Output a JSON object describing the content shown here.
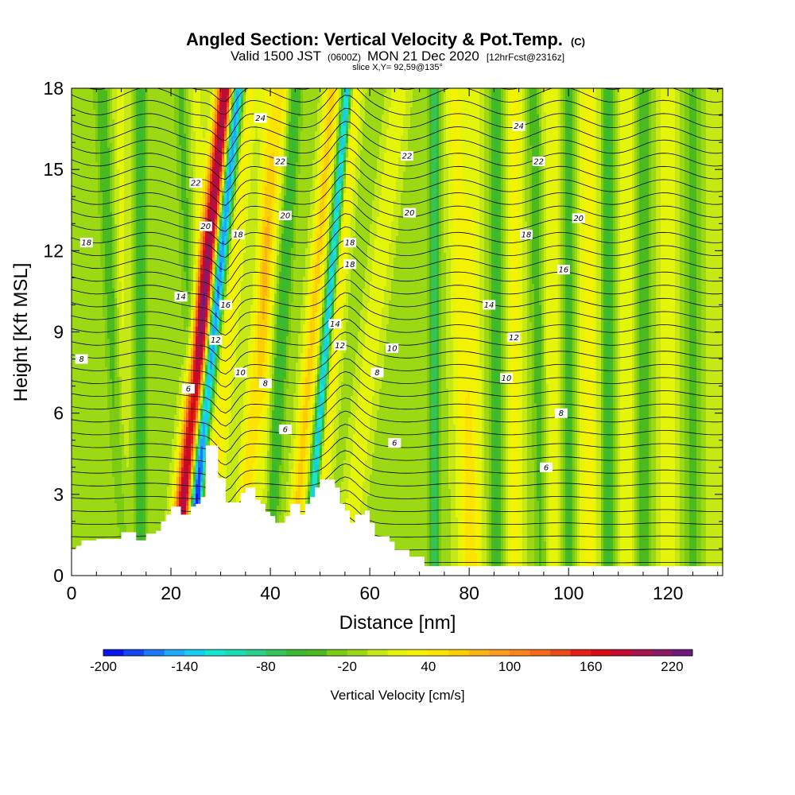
{
  "header": {
    "title_main": "Angled Section: Vertical Velocity & Pot.Temp.",
    "title_unit": "(C)",
    "valid_part1": "Valid 1500 JST",
    "valid_utc": "(0600Z)",
    "valid_part2": "MON 21 Dec 2020",
    "valid_fcst": "[12hrFcst@2316z]",
    "slice": "slice X,Y= 92,59@135°"
  },
  "chart_data": {
    "type": "heatmap",
    "xlabel": "Distance [nm]",
    "ylabel": "Height [Kft MSL]",
    "xlim": [
      0,
      131
    ],
    "ylim": [
      0,
      18
    ],
    "x_ticks": [
      0,
      20,
      40,
      60,
      80,
      100,
      120
    ],
    "y_ticks": [
      0,
      3,
      6,
      9,
      12,
      15,
      18
    ],
    "field": "vertical velocity (color fill)",
    "contour_field": "potential temperature (black contours)",
    "colorbar": {
      "title": "Vertical Velocity [cm/s]",
      "ticks": [
        -200,
        -140,
        -80,
        -20,
        40,
        100,
        160,
        220
      ],
      "levels": [
        -200,
        -185,
        -170,
        -155,
        -140,
        -125,
        -110,
        -95,
        -80,
        -65,
        -50,
        -35,
        -20,
        -5,
        10,
        25,
        40,
        55,
        70,
        85,
        100,
        115,
        130,
        145,
        160,
        175,
        190,
        205,
        220,
        235
      ],
      "colors": [
        "#0a16ee",
        "#1446f5",
        "#1e78fa",
        "#1ea9fa",
        "#14cdf0",
        "#14e6d2",
        "#18dcb2",
        "#2ad08c",
        "#34c45a",
        "#3aba2e",
        "#4aba1e",
        "#7ccc14",
        "#9cd814",
        "#c6e814",
        "#e4f50a",
        "#f4f200",
        "#fce400",
        "#fcd000",
        "#fcb414",
        "#fc9c1c",
        "#fc841c",
        "#f46a1a",
        "#ec4a1a",
        "#e41e14",
        "#d80a14",
        "#c40a32",
        "#a8124e",
        "#8c1868",
        "#6c1a7e"
      ]
    },
    "terrain_profile": [
      [
        0,
        1.0
      ],
      [
        1,
        1.0
      ],
      [
        1,
        1.1
      ],
      [
        2,
        1.1
      ],
      [
        2,
        1.3
      ],
      [
        5,
        1.3
      ],
      [
        5,
        1.35
      ],
      [
        10,
        1.35
      ],
      [
        10,
        1.6
      ],
      [
        13,
        1.6
      ],
      [
        13,
        1.3
      ],
      [
        15,
        1.3
      ],
      [
        15,
        1.55
      ],
      [
        17,
        1.55
      ],
      [
        17,
        1.65
      ],
      [
        18,
        1.65
      ],
      [
        18,
        2.0
      ],
      [
        19,
        2.0
      ],
      [
        19,
        2.25
      ],
      [
        20,
        2.25
      ],
      [
        20,
        2.55
      ],
      [
        22,
        2.55
      ],
      [
        22,
        2.25
      ],
      [
        24,
        2.25
      ],
      [
        24,
        2.55
      ],
      [
        25,
        2.55
      ],
      [
        25,
        2.65
      ],
      [
        26,
        2.65
      ],
      [
        26,
        2.9
      ],
      [
        27,
        2.9
      ],
      [
        27,
        4.8
      ],
      [
        29.5,
        4.8
      ],
      [
        29.5,
        3.6
      ],
      [
        31,
        3.6
      ],
      [
        31,
        2.7
      ],
      [
        34,
        2.7
      ],
      [
        34,
        3.05
      ],
      [
        35,
        3.05
      ],
      [
        35,
        3.25
      ],
      [
        37,
        3.25
      ],
      [
        37,
        2.8
      ],
      [
        38,
        2.8
      ],
      [
        38,
        2.65
      ],
      [
        39,
        2.65
      ],
      [
        39,
        2.35
      ],
      [
        40,
        2.35
      ],
      [
        40,
        2.2
      ],
      [
        41,
        2.2
      ],
      [
        41,
        1.95
      ],
      [
        43,
        1.95
      ],
      [
        43,
        2.2
      ],
      [
        44,
        2.2
      ],
      [
        44,
        2.65
      ],
      [
        46,
        2.65
      ],
      [
        46,
        2.25
      ],
      [
        47,
        2.25
      ],
      [
        47,
        2.65
      ],
      [
        48,
        2.65
      ],
      [
        48,
        2.9
      ],
      [
        49,
        2.9
      ],
      [
        49,
        3.25
      ],
      [
        50,
        3.25
      ],
      [
        50,
        3.55
      ],
      [
        53,
        3.55
      ],
      [
        53,
        3.25
      ],
      [
        54,
        3.25
      ],
      [
        54,
        2.65
      ],
      [
        55,
        2.65
      ],
      [
        55,
        2.4
      ],
      [
        56,
        2.4
      ],
      [
        56,
        1.95
      ],
      [
        57,
        1.95
      ],
      [
        57,
        2.25
      ],
      [
        59,
        2.25
      ],
      [
        59,
        2.4
      ],
      [
        60,
        2.4
      ],
      [
        60,
        1.95
      ],
      [
        61,
        1.95
      ],
      [
        61,
        1.45
      ],
      [
        64,
        1.45
      ],
      [
        64,
        1.25
      ],
      [
        65,
        1.25
      ],
      [
        65,
        0.95
      ],
      [
        68,
        0.95
      ],
      [
        68,
        0.7
      ],
      [
        71,
        0.7
      ],
      [
        71,
        0.35
      ],
      [
        131,
        0.35
      ]
    ],
    "w_features": [
      {
        "x": 31.0,
        "slope": -0.55,
        "w": 210,
        "width": 1.8
      },
      {
        "x": 33.5,
        "slope": -0.55,
        "w": -185,
        "width": 1.3
      },
      {
        "x": 35.5,
        "slope": -0.45,
        "w": 45,
        "width": 2.2
      },
      {
        "x": 39.0,
        "slope": 0,
        "w": 25,
        "width": 1.4
      },
      {
        "x": 42.0,
        "slope": -0.45,
        "w": 60,
        "width": 2.0
      },
      {
        "x": 45.0,
        "slope": -0.3,
        "w": -50,
        "width": 1.4
      },
      {
        "x": 52.5,
        "slope": -0.45,
        "w": 70,
        "width": 1.6
      },
      {
        "x": 55.5,
        "slope": -0.45,
        "w": -140,
        "width": 1.0
      },
      {
        "x": 57.0,
        "slope": -0.45,
        "w": 55,
        "width": 1.5
      },
      {
        "x": 6.0,
        "slope": 0.25,
        "w": -40,
        "width": 1.4
      },
      {
        "x": 10.0,
        "slope": 0,
        "w": 25,
        "width": 1.6
      },
      {
        "x": 14.0,
        "slope": 0,
        "w": -50,
        "width": 1.2
      },
      {
        "x": 22.0,
        "slope": 0.2,
        "w": -30,
        "width": 1.4
      },
      {
        "x": 25.0,
        "slope": 0.2,
        "w": 25,
        "width": 1.6
      },
      {
        "x": 66.0,
        "slope": -0.6,
        "w": 35,
        "width": 2.0
      },
      {
        "x": 73.0,
        "slope": 0,
        "w": -60,
        "width": 1.2
      },
      {
        "x": 77.0,
        "slope": 0.15,
        "w": 40,
        "width": 2.2
      },
      {
        "x": 81.0,
        "slope": 0,
        "w": 30,
        "width": 1.8
      },
      {
        "x": 85.5,
        "slope": 0,
        "w": -55,
        "width": 1.3
      },
      {
        "x": 89.0,
        "slope": 0,
        "w": 40,
        "width": 2.0
      },
      {
        "x": 93.0,
        "slope": 0.1,
        "w": -40,
        "width": 1.4
      },
      {
        "x": 96.5,
        "slope": 0,
        "w": 35,
        "width": 2.0
      },
      {
        "x": 100.0,
        "slope": 0,
        "w": -45,
        "width": 1.4
      },
      {
        "x": 104.0,
        "slope": 0,
        "w": 45,
        "width": 2.2
      },
      {
        "x": 108.0,
        "slope": 0,
        "w": -45,
        "width": 1.4
      },
      {
        "x": 111.5,
        "slope": 0,
        "w": 35,
        "width": 1.8
      },
      {
        "x": 115.0,
        "slope": 0,
        "w": -40,
        "width": 1.4
      },
      {
        "x": 120.0,
        "slope": 0,
        "w": 30,
        "width": 2.2
      },
      {
        "x": 125.0,
        "slope": 0,
        "w": -30,
        "width": 2.0
      },
      {
        "x": 129.0,
        "slope": 0,
        "w": 20,
        "width": 1.6
      }
    ],
    "contour_labels": [
      {
        "text": "24",
        "x": 38.0,
        "y": 16.9
      },
      {
        "text": "24",
        "x": 90.0,
        "y": 16.6
      },
      {
        "text": "22",
        "x": 25.0,
        "y": 14.5
      },
      {
        "text": "22",
        "x": 42.0,
        "y": 15.3
      },
      {
        "text": "22",
        "x": 67.5,
        "y": 15.5
      },
      {
        "text": "22",
        "x": 94.0,
        "y": 15.3
      },
      {
        "text": "20",
        "x": 27.0,
        "y": 12.9
      },
      {
        "text": "20",
        "x": 43.0,
        "y": 13.3
      },
      {
        "text": "20",
        "x": 68.0,
        "y": 13.4
      },
      {
        "text": "20",
        "x": 102.0,
        "y": 13.2
      },
      {
        "text": "18",
        "x": 3.0,
        "y": 12.3
      },
      {
        "text": "18",
        "x": 33.5,
        "y": 12.6
      },
      {
        "text": "18",
        "x": 56.0,
        "y": 12.3
      },
      {
        "text": "18",
        "x": 56.0,
        "y": 11.5
      },
      {
        "text": "18",
        "x": 91.5,
        "y": 12.6
      },
      {
        "text": "16",
        "x": 31.0,
        "y": 10.0
      },
      {
        "text": "16",
        "x": 99.0,
        "y": 11.3
      },
      {
        "text": "14",
        "x": 22.0,
        "y": 10.3
      },
      {
        "text": "14",
        "x": 53.0,
        "y": 9.3
      },
      {
        "text": "14",
        "x": 84.0,
        "y": 10.0
      },
      {
        "text": "12",
        "x": 29.0,
        "y": 8.7
      },
      {
        "text": "12",
        "x": 54.0,
        "y": 8.5
      },
      {
        "text": "12",
        "x": 89.0,
        "y": 8.8
      },
      {
        "text": "10",
        "x": 34.0,
        "y": 7.5
      },
      {
        "text": "10",
        "x": 64.5,
        "y": 8.4
      },
      {
        "text": "10",
        "x": 87.5,
        "y": 7.3
      },
      {
        "text": "8",
        "x": 2.0,
        "y": 8.0
      },
      {
        "text": "8",
        "x": 39.0,
        "y": 7.1
      },
      {
        "text": "8",
        "x": 61.5,
        "y": 7.5
      },
      {
        "text": "8",
        "x": 98.5,
        "y": 6.0
      },
      {
        "text": "6",
        "x": 23.5,
        "y": 6.9
      },
      {
        "text": "6",
        "x": 43.0,
        "y": 5.4
      },
      {
        "text": "6",
        "x": 65.0,
        "y": 4.9
      },
      {
        "text": "6",
        "x": 95.5,
        "y": 4.0
      }
    ]
  }
}
